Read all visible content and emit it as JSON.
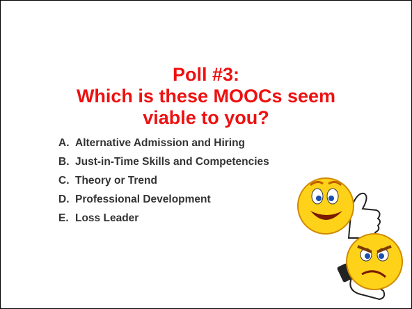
{
  "slide": {
    "title": [
      "Poll #3:",
      "Which is these MOOCs seem",
      "viable to you?"
    ],
    "items": [
      {
        "letter": "A.",
        "text": "Alternative Admission and Hiring"
      },
      {
        "letter": "B.",
        "text": "Just-in-Time Skills and Competencies"
      },
      {
        "letter": "C.",
        "text": "Theory or Trend"
      },
      {
        "letter": "D.",
        "text": "Professional Development"
      },
      {
        "letter": "E.",
        "text": "Loss Leader"
      }
    ]
  }
}
